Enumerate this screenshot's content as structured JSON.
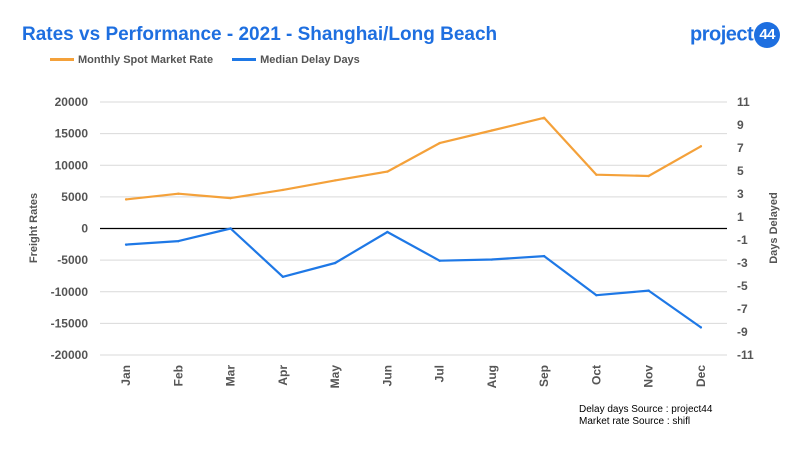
{
  "chart_data": {
    "type": "line",
    "title": "Rates vs Performance - 2021 - Shanghai/Long Beach",
    "logo_text": "project",
    "logo_number": "44",
    "categories": [
      "Jan",
      "Feb",
      "Mar",
      "Apr",
      "May",
      "Jun",
      "Jul",
      "Aug",
      "Sep",
      "Oct",
      "Nov",
      "Dec"
    ],
    "ylabel": "Freight Rates",
    "y2label": "Days Delayed",
    "ylim": [
      -20000,
      20000
    ],
    "y2lim": [
      -11,
      11
    ],
    "yticks": [
      "20000",
      "15000",
      "10000",
      "5000",
      "0",
      "-5000",
      "-10000",
      "-15000",
      "-20000"
    ],
    "y2ticks": [
      "11",
      "9",
      "7",
      "5",
      "3",
      "1",
      "-1",
      "-3",
      "-5",
      "-7",
      "-9",
      "-11"
    ],
    "legend_position": "top-left",
    "series": [
      {
        "name": "Monthly Spot Market Rate",
        "axis": "left",
        "color": "#f4a13a",
        "values": [
          4600,
          5500,
          4800,
          6100,
          7600,
          9000,
          13500,
          15500,
          17500,
          8500,
          8300,
          13000
        ]
      },
      {
        "name": "Median Delay Days",
        "axis": "right",
        "color": "#1e78e6",
        "values": [
          -1.4,
          -1.1,
          0,
          -4.2,
          -3.0,
          -0.3,
          -2.8,
          -2.7,
          -2.4,
          -5.8,
          -5.4,
          -8.6
        ]
      }
    ],
    "sources": [
      "Delay days Source : project44",
      "Market rate Source : shifl"
    ]
  }
}
